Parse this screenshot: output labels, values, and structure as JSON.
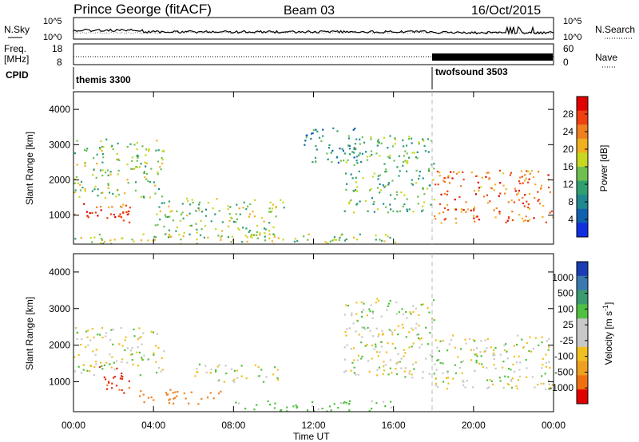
{
  "header": {
    "station": "Prince George (fitACF)",
    "beam": "Beam 03",
    "date": "16/Oct/2015"
  },
  "panels": {
    "nsky_label": "N.Sky",
    "nsearch_label": "N.Search",
    "nsky_ticks": [
      "10^5",
      "10^0"
    ],
    "nsearch_ticks": [
      "10^5",
      "10^0"
    ],
    "freq_label_1": "Freq.",
    "freq_label_2": "[MHz]",
    "freq_ticks": [
      "18",
      "8"
    ],
    "nave_label": "Nave",
    "nave_ticks": [
      "60",
      "0"
    ],
    "cpid_label": "CPID",
    "cpid_modes": [
      {
        "name": "themis 3300",
        "start_ut": "00:00"
      },
      {
        "name": "twofsound 3503",
        "start_ut": "18:00"
      }
    ]
  },
  "axes": {
    "ylabel": "Slant Range [km]",
    "yticks": [
      "4000",
      "3000",
      "2000",
      "1000"
    ],
    "xticks": [
      "00:00",
      "04:00",
      "08:00",
      "12:00",
      "16:00",
      "20:00",
      "00:00"
    ],
    "xlabel": "Time UT"
  },
  "colorbars": {
    "power": {
      "label": "Power [dB]",
      "ticks": [
        "28",
        "24",
        "20",
        "16",
        "12",
        "8",
        "4"
      ],
      "colors": [
        "#e00000",
        "#f04010",
        "#f08020",
        "#f0b020",
        "#c8d820",
        "#70c050",
        "#30a070",
        "#208890",
        "#1060b0",
        "#1030e0"
      ]
    },
    "velocity": {
      "label": "Velocity [m s",
      "label_sup": "-1",
      "label_end": "]",
      "ticks": [
        "1000",
        "500",
        "100",
        "25",
        "-25",
        "-100",
        "-500",
        "-1000"
      ],
      "colors": [
        "#1a3cb4",
        "#3a7ab0",
        "#3a9a70",
        "#50c040",
        "#c8c8c8",
        "#c8c8c8",
        "#f0c020",
        "#f0a020",
        "#f07010",
        "#e00000"
      ]
    }
  },
  "chart_data": [
    {
      "type": "heatmap",
      "title": "Power",
      "ylabel": "Slant Range [km]",
      "xlabel": "Time UT",
      "x_range_ut": [
        "00:00",
        "24:00"
      ],
      "ylim_km": [
        180,
        4500
      ],
      "colorbar": "Power [dB]",
      "colorbar_range": [
        0,
        30
      ],
      "echo_regions": [
        {
          "ut": [
            0.0,
            2.8
          ],
          "range_km": [
            900,
            1400
          ],
          "power_db": 26
        },
        {
          "ut": [
            1.8,
            2.8
          ],
          "range_km": [
            700,
            1300
          ],
          "power_db": 28
        },
        {
          "ut": [
            0.0,
            4.5
          ],
          "range_km": [
            1500,
            3200
          ],
          "power_db": 14
        },
        {
          "ut": [
            4.0,
            10.5
          ],
          "range_km": [
            400,
            1500
          ],
          "power_db": 14
        },
        {
          "ut": [
            0.0,
            16.5
          ],
          "range_km": [
            200,
            500
          ],
          "power_db": 16
        },
        {
          "ut": [
            11.5,
            14.5
          ],
          "range_km": [
            2500,
            3500
          ],
          "power_db": 8
        },
        {
          "ut": [
            13.5,
            18.0
          ],
          "range_km": [
            1100,
            3300
          ],
          "power_db": 12
        },
        {
          "ut": [
            18.0,
            24.0
          ],
          "range_km": [
            800,
            2300
          ],
          "power_db": 24
        }
      ]
    },
    {
      "type": "heatmap",
      "title": "Velocity",
      "ylabel": "Slant Range [km]",
      "xlabel": "Time UT",
      "x_range_ut": [
        "00:00",
        "24:00"
      ],
      "ylim_km": [
        180,
        4500
      ],
      "colorbar": "Velocity [m s-1]",
      "colorbar_range": [
        -1000,
        1000
      ],
      "echo_regions": [
        {
          "ut": [
            1.2,
            2.8
          ],
          "range_km": [
            700,
            1500
          ],
          "velocity_ms": -700
        },
        {
          "ut": [
            3.0,
            7.5
          ],
          "range_km": [
            400,
            800
          ],
          "velocity_ms": -400
        },
        {
          "ut": [
            0.0,
            4.5
          ],
          "range_km": [
            1200,
            2500
          ],
          "velocity_ms": 0
        },
        {
          "ut": [
            6.0,
            10.5
          ],
          "range_km": [
            1000,
            1500
          ],
          "velocity_ms": 0
        },
        {
          "ut": [
            8.0,
            16.0
          ],
          "range_km": [
            200,
            500
          ],
          "velocity_ms": 150
        },
        {
          "ut": [
            13.5,
            18.0
          ],
          "range_km": [
            1100,
            3300
          ],
          "velocity_ms": 0
        },
        {
          "ut": [
            18.0,
            24.0
          ],
          "range_km": [
            800,
            2300
          ],
          "velocity_ms": 0
        }
      ]
    }
  ]
}
